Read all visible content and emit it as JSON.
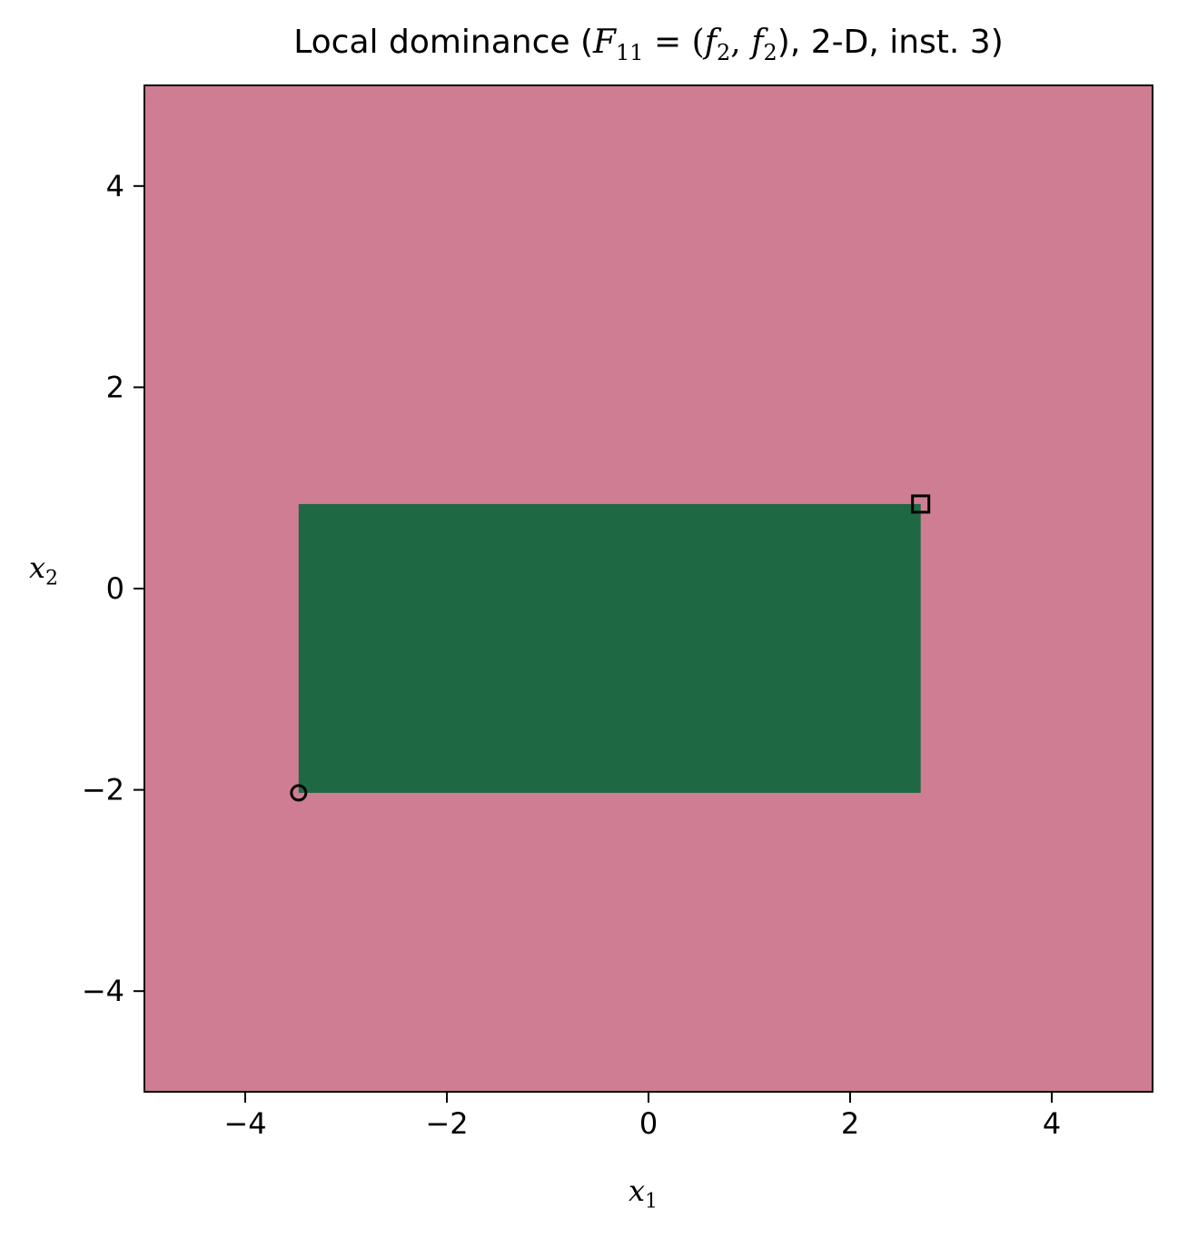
{
  "chart_data": {
    "type": "heatmap",
    "title": {
      "prefix": "Local dominance (",
      "F": "F",
      "F_sub": "11",
      "eq": " = (",
      "f1": "f",
      "f1_sub": "2",
      "comma": ", ",
      "f2": "f",
      "f2_sub": "2",
      "suffix": "), 2-D, inst. 3)"
    },
    "xlabel": {
      "base": "x",
      "sub": "1"
    },
    "ylabel": {
      "base": "x",
      "sub": "2"
    },
    "xlim": [
      -5,
      5
    ],
    "ylim": [
      -5,
      5
    ],
    "xticks": [
      -4,
      -2,
      0,
      2,
      4
    ],
    "yticks": [
      -4,
      -2,
      0,
      2,
      4
    ],
    "grid": false,
    "background_color": "#cf7d93",
    "region": {
      "x0": -3.47,
      "x1": 2.7,
      "y0": -2.03,
      "y1": 0.84,
      "color": "#1f6844"
    },
    "markers": [
      {
        "shape": "circle",
        "x": -3.47,
        "y": -2.03
      },
      {
        "shape": "square",
        "x": 2.7,
        "y": 0.84
      }
    ]
  }
}
